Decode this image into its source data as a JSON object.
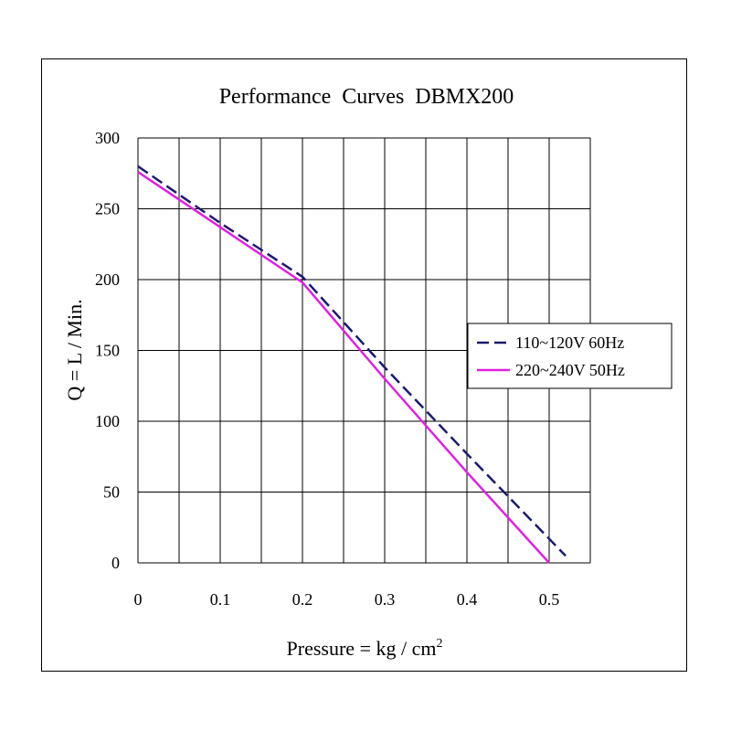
{
  "chart_data": {
    "type": "line",
    "title": "Performance  Curves  DBMX200",
    "xlabel": "Pressure = kg / cm",
    "xlabel_superscript": "2",
    "ylabel": "Q = L / Min.",
    "xlim": [
      0,
      0.55
    ],
    "ylim": [
      0,
      300
    ],
    "x_ticks": [
      0,
      0.1,
      0.2,
      0.3,
      0.4,
      0.5
    ],
    "x_tick_labels": [
      "0",
      "0.1",
      "0.2",
      "0.3",
      "0.4",
      "0.5"
    ],
    "y_ticks": [
      0,
      50,
      100,
      150,
      200,
      250,
      300
    ],
    "y_tick_labels": [
      "0",
      "50",
      "100",
      "150",
      "200",
      "250",
      "300"
    ],
    "x_gridlines": [
      0.05,
      0.1,
      0.15,
      0.2,
      0.25,
      0.3,
      0.35,
      0.4,
      0.45,
      0.5,
      0.55
    ],
    "grid": true,
    "legend_position": "right",
    "series": [
      {
        "name": "110~120V 60Hz",
        "color": "#1a1a6e",
        "style": "dashed",
        "x": [
          0,
          0.1,
          0.2,
          0.3,
          0.4,
          0.52
        ],
        "y": [
          280,
          240,
          202,
          138,
          77,
          5
        ]
      },
      {
        "name": "220~240V 50Hz",
        "color": "#e020e0",
        "style": "solid",
        "x": [
          0,
          0.1,
          0.2,
          0.3,
          0.4,
          0.5
        ],
        "y": [
          276,
          237,
          198,
          130,
          64,
          0
        ]
      }
    ]
  }
}
